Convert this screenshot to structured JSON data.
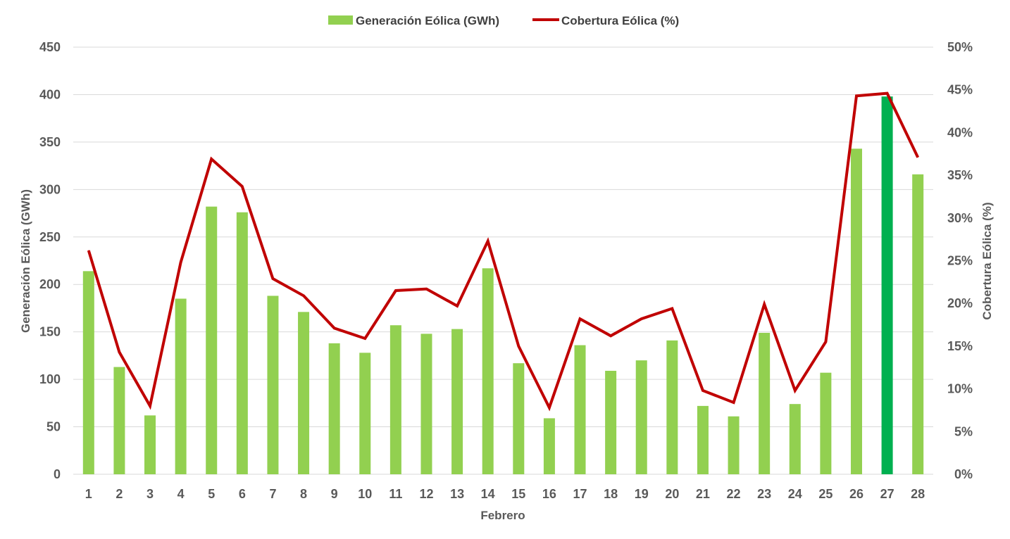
{
  "chart_data": {
    "type": "bar",
    "xlabel": "Febrero",
    "ylabel": "Generación Eólica (GWh)",
    "y2label": "Cobertura Eólica (%)",
    "ylim": [
      0,
      450
    ],
    "y2lim": [
      0,
      50
    ],
    "yticks": [
      0,
      50,
      100,
      150,
      200,
      250,
      300,
      350,
      400,
      450
    ],
    "y2ticks": [
      0,
      5,
      10,
      15,
      20,
      25,
      30,
      35,
      40,
      45,
      50
    ],
    "y2tick_suffix": "%",
    "grid": true,
    "legend_position": "top-center",
    "categories": [
      "1",
      "2",
      "3",
      "4",
      "5",
      "6",
      "7",
      "8",
      "9",
      "10",
      "11",
      "12",
      "13",
      "14",
      "15",
      "16",
      "17",
      "18",
      "19",
      "20",
      "21",
      "22",
      "23",
      "24",
      "25",
      "26",
      "27",
      "28"
    ],
    "series": [
      {
        "name": "Generación Eólica (GWh)",
        "type": "bar",
        "axis": "left",
        "color": "#92d050",
        "highlight_color": "#00b050",
        "highlight_index": 26,
        "values": [
          214,
          113,
          62,
          185,
          282,
          276,
          188,
          171,
          138,
          128,
          157,
          148,
          153,
          217,
          117,
          59,
          136,
          109,
          120,
          141,
          72,
          61,
          149,
          74,
          107,
          343,
          398,
          316
        ]
      },
      {
        "name": "Cobertura Eólica (%)",
        "type": "line",
        "axis": "right",
        "color": "#c00000",
        "values": [
          26.2,
          14.3,
          8.0,
          24.8,
          36.9,
          33.7,
          22.9,
          20.9,
          17.1,
          15.9,
          21.5,
          21.7,
          19.7,
          27.3,
          15.0,
          7.8,
          18.2,
          16.2,
          18.2,
          19.4,
          9.8,
          8.4,
          19.9,
          9.8,
          15.5,
          44.3,
          44.6,
          37.1
        ]
      }
    ]
  }
}
